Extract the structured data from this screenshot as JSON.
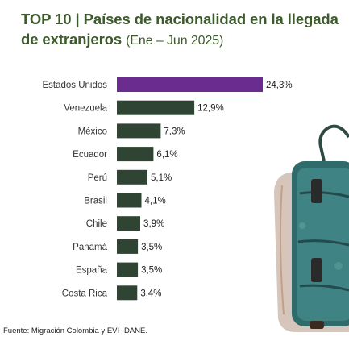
{
  "header": {
    "title_main": "TOP 10 | Países de nacionalidad en la llegada de extranjeros",
    "title_period": "(Ene – Jun 2025)"
  },
  "chart_data": {
    "type": "bar",
    "orientation": "horizontal",
    "categories": [
      "Estados Unidos",
      "Venezuela",
      "México",
      "Ecuador",
      "Perú",
      "Brasil",
      "Chile",
      "Panamá",
      "España",
      "Costa Rica"
    ],
    "values": [
      24.3,
      12.9,
      7.3,
      6.1,
      5.1,
      4.1,
      3.9,
      3.5,
      3.5,
      3.4
    ],
    "labels": [
      "24,3%",
      "12,9%",
      "7,3%",
      "6,1%",
      "5,1%",
      "4,1%",
      "3,9%",
      "3,5%",
      "3,5%",
      "3,4%"
    ],
    "unit": "%",
    "highlight_color": "#6b2c8f",
    "bar_color": "#2f4432",
    "title": "TOP 10 | Países de nacionalidad en la llegada de extranjeros (Ene – Jun 2025)",
    "xlabel": "",
    "ylabel": ""
  },
  "footer": {
    "source": "Fuente: Migración Colombia y EVI- DANE."
  },
  "decor": {
    "illustration": "suitcase-illustration"
  }
}
